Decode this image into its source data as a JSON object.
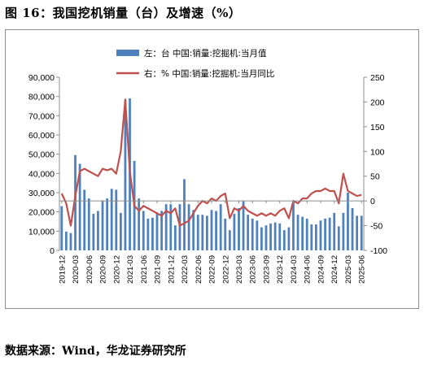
{
  "title": "图 16：我国挖机销量（台）及增速（%）",
  "source": "数据来源：Wind，华龙证券研究所",
  "chart_data": {
    "type": "bar+line",
    "x": [
      "2019-12",
      "2020-01",
      "2020-02",
      "2020-03",
      "2020-04",
      "2020-05",
      "2020-06",
      "2020-07",
      "2020-08",
      "2020-09",
      "2020-10",
      "2020-11",
      "2020-12",
      "2021-01",
      "2021-02",
      "2021-03",
      "2021-04",
      "2021-05",
      "2021-06",
      "2021-07",
      "2021-08",
      "2021-09",
      "2021-10",
      "2021-11",
      "2021-12",
      "2022-01",
      "2022-02",
      "2022-03",
      "2022-04",
      "2022-05",
      "2022-06",
      "2022-07",
      "2022-08",
      "2022-09",
      "2022-10",
      "2022-11",
      "2022-12",
      "2023-01",
      "2023-02",
      "2023-03",
      "2023-04",
      "2023-05",
      "2023-06",
      "2023-07",
      "2023-08",
      "2023-09",
      "2023-10",
      "2023-11",
      "2023-12",
      "2024-01",
      "2024-02",
      "2024-03",
      "2024-04",
      "2024-05",
      "2024-06",
      "2024-07",
      "2024-08",
      "2024-09",
      "2024-10",
      "2024-11",
      "2024-12",
      "2025-01",
      "2025-02",
      "2025-03",
      "2025-04",
      "2025-05",
      "2025-06"
    ],
    "xtick_labels": [
      "2019-12",
      "2020-03",
      "2020-06",
      "2020-09",
      "2020-12",
      "2021-03",
      "2021-06",
      "2021-09",
      "2021-12",
      "2022-03",
      "2022-06",
      "2022-09",
      "2022-12",
      "2023-03",
      "2023-06",
      "2023-09",
      "2023-12",
      "2024-03",
      "2024-06",
      "2024-09",
      "2024-12",
      "2025-03",
      "2025-06"
    ],
    "series": [
      {
        "name": "左：台 中国:销量:挖掘机:当月值",
        "type": "bar",
        "axis": "left",
        "color": "#4f81bd",
        "values": [
          23000,
          9800,
          9000,
          49500,
          45000,
          31500,
          27000,
          19000,
          20500,
          26000,
          27000,
          32000,
          31500,
          19500,
          78000,
          79000,
          46500,
          27000,
          20500,
          16500,
          17000,
          19000,
          20500,
          24000,
          24000,
          13000,
          24000,
          37000,
          24000,
          21000,
          18500,
          18500,
          18000,
          21000,
          20500,
          24000,
          16500,
          10500,
          19000,
          22000,
          25500,
          18500,
          16500,
          15500,
          12000,
          13000,
          14000,
          14500,
          14000,
          10500,
          12000,
          25000,
          18500,
          17500,
          16500,
          13500,
          13500,
          15500,
          16500,
          17000,
          19500,
          12500,
          19500,
          30000,
          22000,
          18000,
          18000
        ]
      },
      {
        "name": "右：% 中国:销量:挖掘机:当月同比",
        "type": "line",
        "axis": "right",
        "color": "#c0504d",
        "values": [
          15,
          -5,
          -50,
          10,
          60,
          65,
          60,
          55,
          50,
          65,
          62,
          65,
          55,
          100,
          205,
          60,
          -10,
          -20,
          -10,
          -15,
          -20,
          -25,
          -30,
          -20,
          -25,
          -15,
          -50,
          -45,
          -40,
          -25,
          -10,
          0,
          -5,
          5,
          0,
          10,
          15,
          -35,
          -15,
          -20,
          -10,
          -20,
          -25,
          -30,
          -25,
          -30,
          -25,
          -30,
          -20,
          -15,
          -35,
          0,
          -5,
          5,
          5,
          15,
          20,
          20,
          25,
          20,
          20,
          -5,
          55,
          20,
          15,
          10,
          12
        ]
      }
    ],
    "left_axis": {
      "min": 0,
      "max": 90000,
      "ticks": [
        "0",
        "10,000",
        "20,000",
        "30,000",
        "40,000",
        "50,000",
        "60,000",
        "70,000",
        "80,000",
        "90,000"
      ]
    },
    "right_axis": {
      "min": -100,
      "max": 250,
      "ticks": [
        "-100",
        "-50",
        "0",
        "50",
        "100",
        "150",
        "200",
        "250"
      ]
    },
    "legend_placement": "top-center",
    "grid": false
  }
}
